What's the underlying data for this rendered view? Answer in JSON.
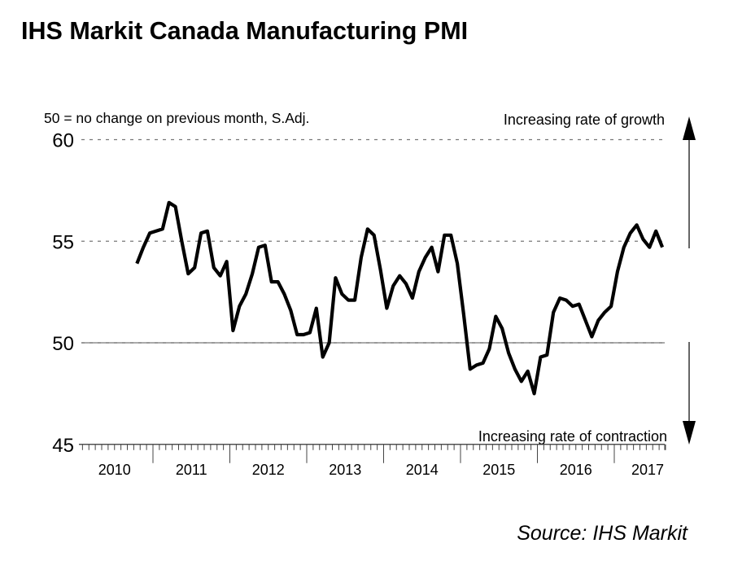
{
  "chart_data": {
    "type": "line",
    "title": "IHS Markit Canada Manufacturing PMI",
    "subtitle": "50 = no change on previous month, S.Adj.",
    "annotations": {
      "growth": "Increasing rate of growth",
      "contraction": "Increasing rate of contraction"
    },
    "source": "Source: IHS Markit",
    "ylim": [
      45,
      60
    ],
    "yticks": [
      "45",
      "50",
      "55",
      "60"
    ],
    "xticks": [
      "2010",
      "2011",
      "2012",
      "2013",
      "2014",
      "2015",
      "2016",
      "2017"
    ],
    "xrange": [
      "2010-01",
      "2017-08"
    ],
    "grid": "dashed horizontal at 55 and 60, solid at 50",
    "line_color": "#000000",
    "x": [
      "2010-10",
      "2010-11",
      "2010-12",
      "2011-01",
      "2011-02",
      "2011-03",
      "2011-04",
      "2011-05",
      "2011-06",
      "2011-07",
      "2011-08",
      "2011-09",
      "2011-10",
      "2011-11",
      "2011-12",
      "2012-01",
      "2012-02",
      "2012-03",
      "2012-04",
      "2012-05",
      "2012-06",
      "2012-07",
      "2012-08",
      "2012-09",
      "2012-10",
      "2012-11",
      "2012-12",
      "2013-01",
      "2013-02",
      "2013-03",
      "2013-04",
      "2013-05",
      "2013-06",
      "2013-07",
      "2013-08",
      "2013-09",
      "2013-10",
      "2013-11",
      "2013-12",
      "2014-01",
      "2014-02",
      "2014-03",
      "2014-04",
      "2014-05",
      "2014-06",
      "2014-07",
      "2014-08",
      "2014-09",
      "2014-10",
      "2014-11",
      "2014-12",
      "2015-01",
      "2015-02",
      "2015-03",
      "2015-04",
      "2015-05",
      "2015-06",
      "2015-07",
      "2015-08",
      "2015-09",
      "2015-10",
      "2015-11",
      "2015-12",
      "2016-01",
      "2016-02",
      "2016-03",
      "2016-04",
      "2016-05",
      "2016-06",
      "2016-07",
      "2016-08",
      "2016-09",
      "2016-10",
      "2016-11",
      "2016-12",
      "2017-01",
      "2017-02",
      "2017-03",
      "2017-04",
      "2017-05",
      "2017-06",
      "2017-07",
      "2017-08"
    ],
    "values": [
      53.9,
      54.7,
      55.4,
      55.5,
      55.6,
      56.9,
      56.7,
      55.0,
      53.4,
      53.7,
      55.4,
      55.5,
      53.7,
      53.3,
      54.0,
      50.6,
      51.8,
      52.4,
      53.4,
      54.7,
      54.8,
      53.0,
      53.0,
      52.4,
      51.6,
      50.4,
      50.4,
      50.5,
      51.7,
      49.3,
      50.0,
      53.2,
      52.4,
      52.1,
      52.1,
      54.2,
      55.6,
      55.3,
      53.6,
      51.7,
      52.8,
      53.3,
      52.9,
      52.2,
      53.5,
      54.2,
      54.7,
      53.5,
      55.3,
      55.3,
      53.9,
      51.4,
      48.7,
      48.9,
      49.0,
      49.7,
      51.3,
      50.7,
      49.5,
      48.7,
      48.1,
      48.6,
      47.5,
      49.3,
      49.4,
      51.5,
      52.2,
      52.1,
      51.8,
      51.9,
      51.1,
      50.3,
      51.1,
      51.5,
      51.8,
      53.5,
      54.7,
      55.4,
      55.8,
      55.1,
      54.7,
      55.5,
      54.7
    ]
  }
}
